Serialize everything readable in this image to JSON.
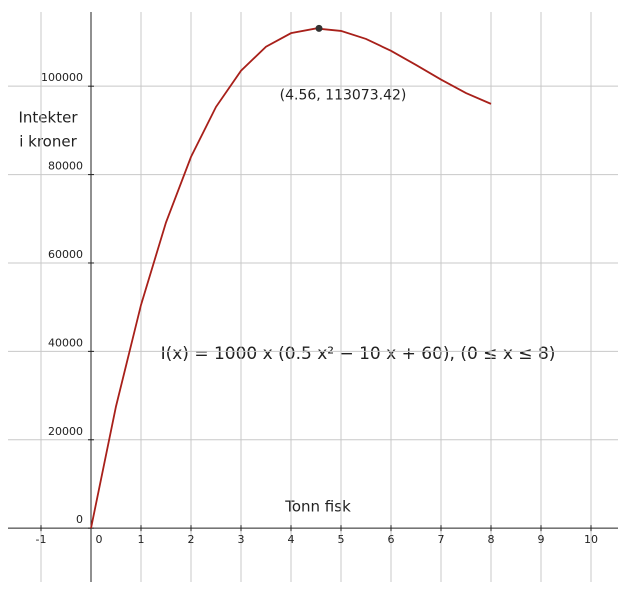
{
  "chart_data": {
    "type": "line",
    "ylabel": [
      "Intekter",
      "i kroner"
    ],
    "xlabel": "Tonn fisk",
    "annotation": "I(x) = 1000 x (0.5 x² − 10 x + 60),    (0 ≤ x ≤ 8)",
    "x": [
      0,
      0.5,
      1,
      1.5,
      2,
      2.5,
      3,
      3.5,
      4,
      4.5,
      5,
      5.5,
      6,
      6.5,
      7,
      7.5,
      8
    ],
    "series": [
      {
        "color": "#a8201a",
        "values": [
          0,
          27562.5,
          50500,
          69187.5,
          84000,
          95312.5,
          103500,
          108937.5,
          112000,
          113062.5,
          112500,
          110687.5,
          108000,
          104812.5,
          101500,
          98437.5,
          96000
        ]
      }
    ],
    "point": {
      "x": 4.56,
      "y": 113073.42,
      "label": "(4.56, 113073.42)",
      "color": "#333333"
    },
    "xlim": [
      -1.82,
      10.7
    ],
    "ylim": [
      -15800,
      119500
    ],
    "xticks": [
      -1,
      0,
      1,
      2,
      3,
      4,
      5,
      6,
      7,
      8,
      9,
      10
    ],
    "yticks": [
      0,
      20000,
      40000,
      60000,
      80000,
      100000
    ],
    "grid": true
  }
}
